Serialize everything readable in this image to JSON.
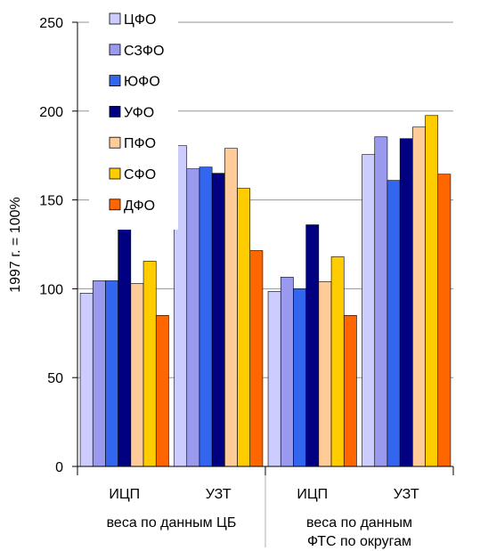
{
  "chart_data": {
    "type": "bar",
    "title": "",
    "xlabel": "",
    "ylabel": "1997 г. = 100%",
    "ylim": [
      0,
      250
    ],
    "y_ticks": [
      "0",
      "50",
      "100",
      "150",
      "200",
      "250"
    ],
    "grid": "major y gridlines",
    "legend_position": "top-left",
    "categories": [
      "ИЦП",
      "УЗТ",
      "ИЦП",
      "УЗТ"
    ],
    "groups": [
      "веса по данным ЦБ",
      "веса по данным ФТС по округам"
    ],
    "series": [
      {
        "name": "ЦФО",
        "color": "#ccccff",
        "values": [
          97.5,
          180.5,
          98.5,
          175.5
        ]
      },
      {
        "name": "СЗФО",
        "color": "#9999ee",
        "values": [
          104.5,
          167.5,
          106.5,
          185.5
        ]
      },
      {
        "name": "ЮФО",
        "color": "#3366ee",
        "values": [
          104.5,
          168.5,
          100,
          161
        ]
      },
      {
        "name": "УФО",
        "color": "#000080",
        "values": [
          133.5,
          165,
          136,
          184.5
        ]
      },
      {
        "name": "ПФО",
        "color": "#ffcc99",
        "values": [
          103,
          179,
          104,
          191
        ]
      },
      {
        "name": "СФО",
        "color": "#ffcc00",
        "values": [
          115.5,
          156.5,
          118,
          197.5
        ]
      },
      {
        "name": "ДФО",
        "color": "#ff6600",
        "values": [
          85,
          121.5,
          85,
          164.5
        ]
      }
    ]
  }
}
